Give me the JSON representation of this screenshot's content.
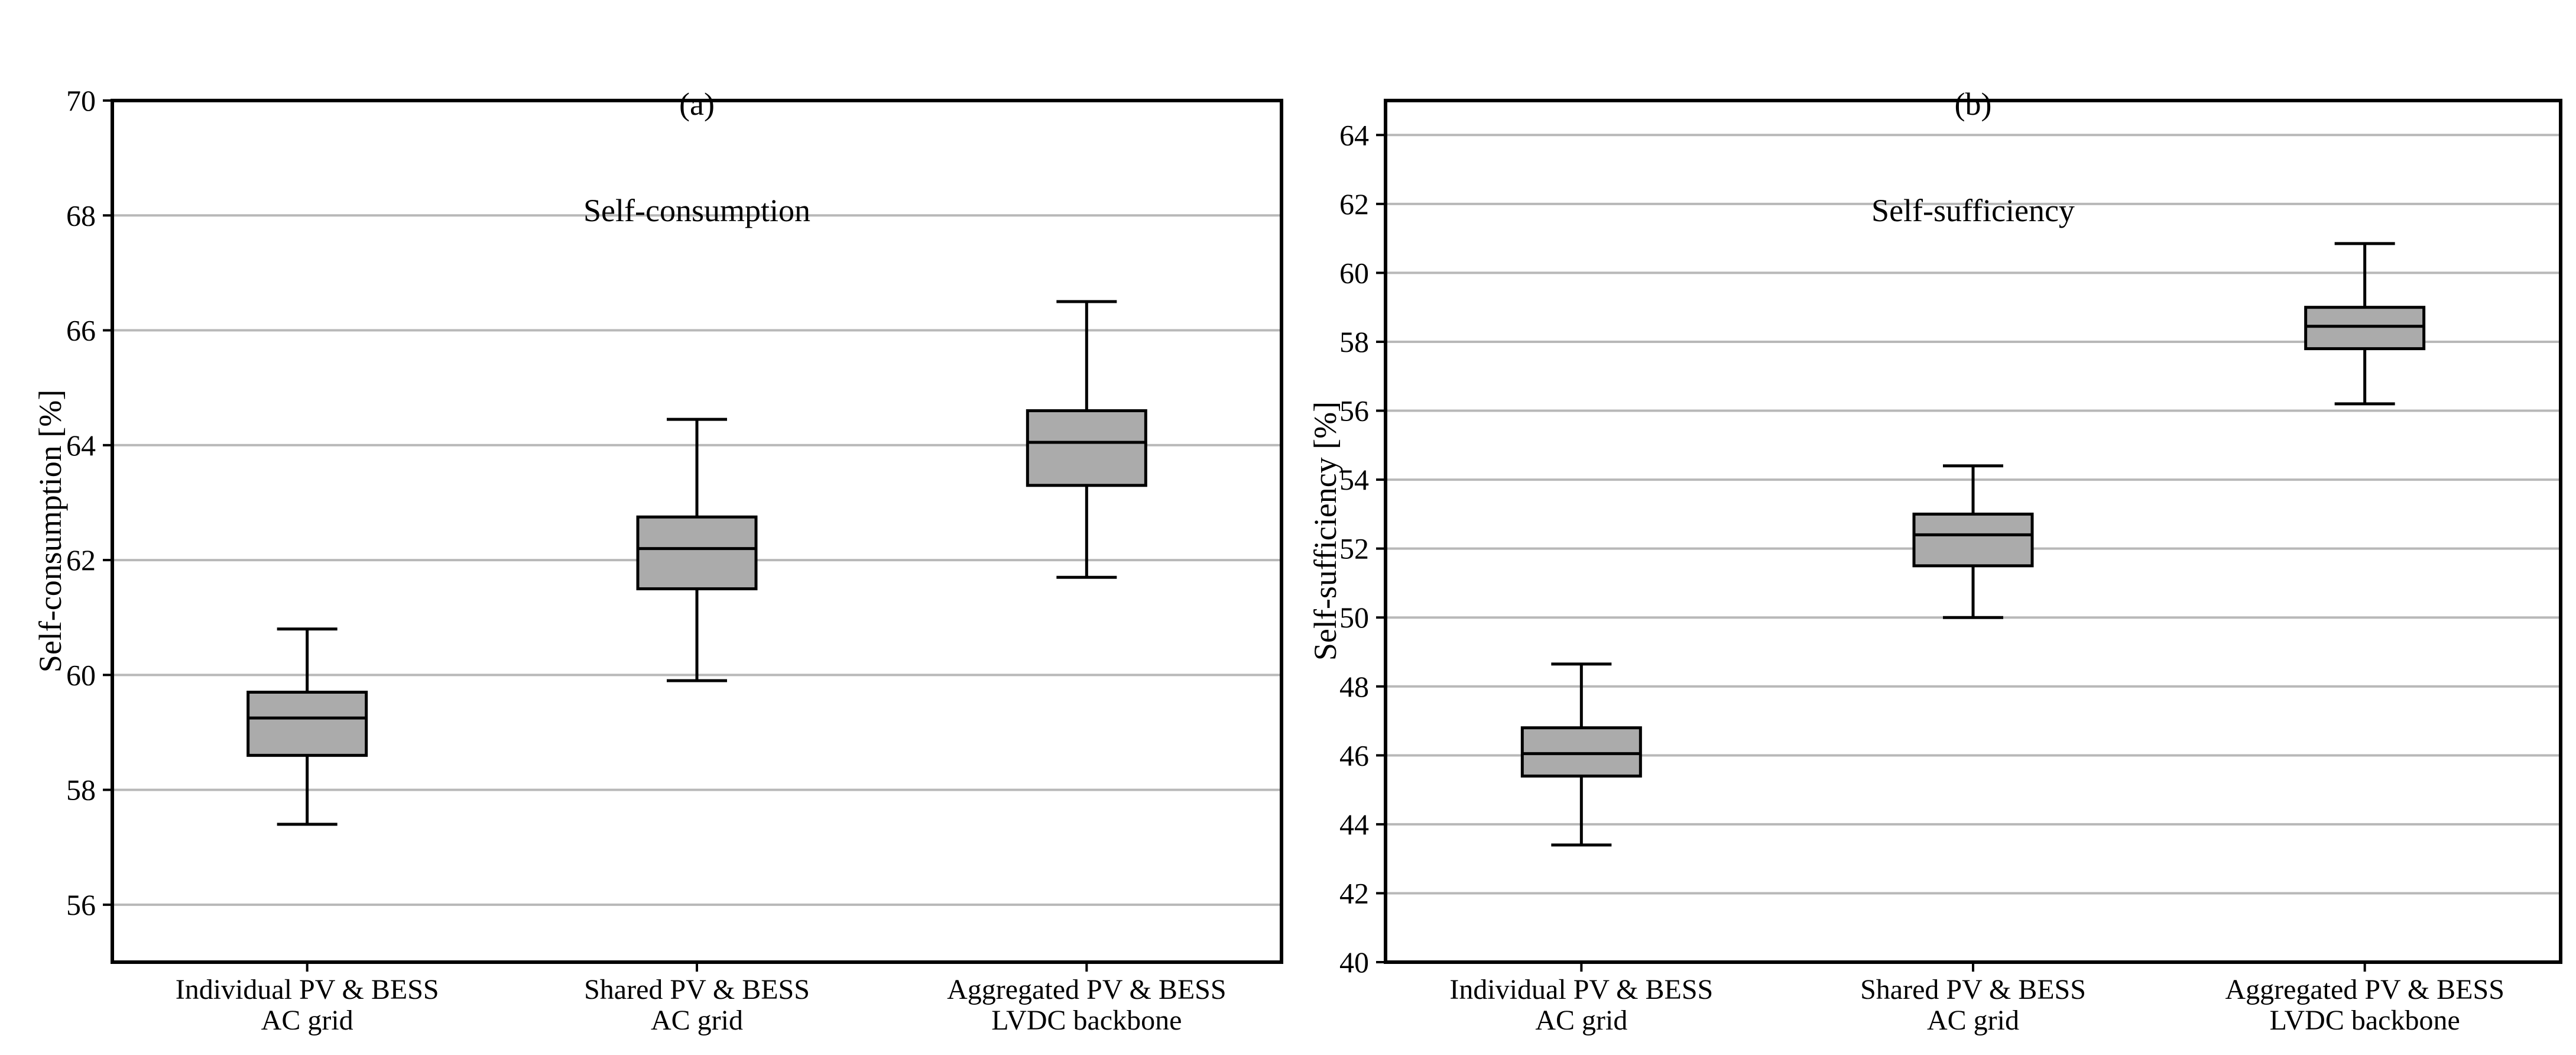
{
  "figure": {
    "panels": [
      {
        "tag": "(a)",
        "title": "Self-consumption",
        "ylabel": "Self-consumption [%]"
      },
      {
        "tag": "(b)",
        "title": "Self-sufficiency",
        "ylabel": "Self-sufficiency [%]"
      }
    ]
  },
  "colors": {
    "background": "#ffffff",
    "box_fill": "#ababab",
    "grid_line": "#b8b8b8",
    "axis_line": "#000000",
    "text": "#000000"
  },
  "chart_data": [
    {
      "type": "boxplot",
      "panel_tag": "(a)",
      "title": "Self-consumption",
      "ylabel": "Self-consumption [%]",
      "ylim": [
        55,
        70
      ],
      "yticks": [
        56,
        58,
        60,
        62,
        64,
        66,
        68,
        70
      ],
      "grid": "horizontal",
      "legend": "none",
      "categories": [
        {
          "line1": "Individual PV & BESS",
          "line2": "AC grid"
        },
        {
          "line1": "Shared PV & BESS",
          "line2": "AC grid"
        },
        {
          "line1": "Aggregated PV & BESS",
          "line2": "LVDC backbone"
        }
      ],
      "series": [
        {
          "label": "Individual PV & BESS, AC grid",
          "whisker_low": 57.4,
          "q1": 58.6,
          "median": 59.25,
          "q3": 59.7,
          "whisker_high": 60.8
        },
        {
          "label": "Shared PV & BESS, AC grid",
          "whisker_low": 59.9,
          "q1": 61.5,
          "median": 62.2,
          "q3": 62.75,
          "whisker_high": 64.45
        },
        {
          "label": "Aggregated PV & BESS, LVDC backbone",
          "whisker_low": 61.7,
          "q1": 63.3,
          "median": 64.05,
          "q3": 64.6,
          "whisker_high": 66.5
        }
      ]
    },
    {
      "type": "boxplot",
      "panel_tag": "(b)",
      "title": "Self-sufficiency",
      "ylabel": "Self-sufficiency [%]",
      "ylim": [
        40,
        65
      ],
      "yticks": [
        40,
        42,
        44,
        46,
        48,
        50,
        52,
        54,
        56,
        58,
        60,
        62,
        64
      ],
      "grid": "horizontal",
      "legend": "none",
      "categories": [
        {
          "line1": "Individual PV & BESS",
          "line2": "AC grid"
        },
        {
          "line1": "Shared PV & BESS",
          "line2": "AC grid"
        },
        {
          "line1": "Aggregated PV & BESS",
          "line2": "LVDC backbone"
        }
      ],
      "series": [
        {
          "label": "Individual PV & BESS, AC grid",
          "whisker_low": 43.4,
          "q1": 45.4,
          "median": 46.05,
          "q3": 46.8,
          "whisker_high": 48.65
        },
        {
          "label": "Shared PV & BESS, AC grid",
          "whisker_low": 50.0,
          "q1": 51.5,
          "median": 52.4,
          "q3": 53.0,
          "whisker_high": 54.4
        },
        {
          "label": "Aggregated PV & BESS, LVDC backbone",
          "whisker_low": 56.2,
          "q1": 57.8,
          "median": 58.45,
          "q3": 59.0,
          "whisker_high": 60.85
        }
      ]
    }
  ]
}
